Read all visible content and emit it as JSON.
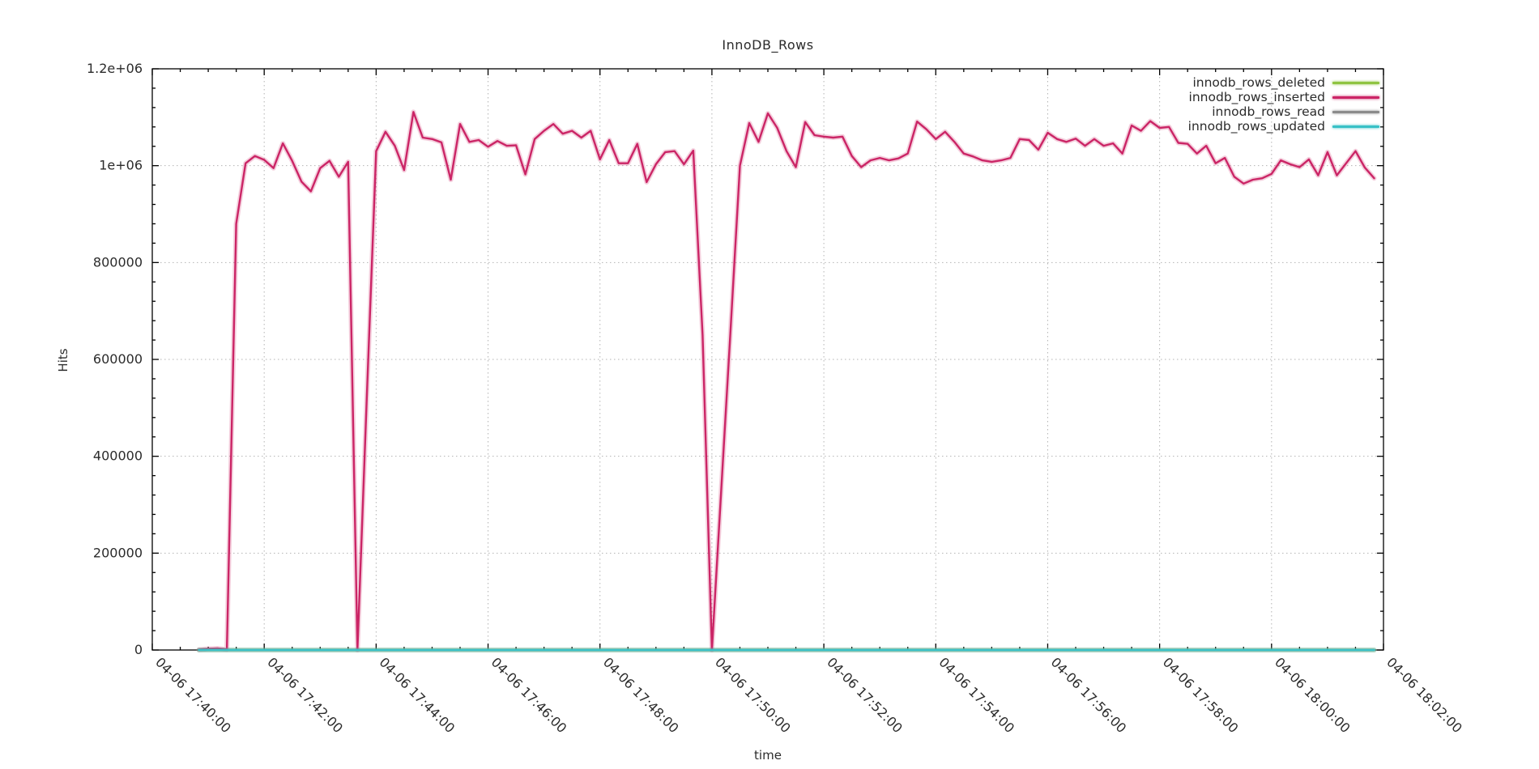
{
  "page": {
    "background_color": "#ffffff",
    "text_color": "#2b2b2b",
    "axis_color": "#000000",
    "grid_color": "#b3b3b3"
  },
  "chart_data": {
    "type": "line",
    "title": "InnoDB_Rows",
    "xlabel": "time",
    "ylabel": "Hits",
    "grid": "dotted",
    "legend_position": "top-right-inside",
    "x_axis": {
      "range_seconds": [
        0,
        1320
      ],
      "major_tick_seconds": 120,
      "minor_tick_seconds": 30,
      "label_rotation_degrees": 45,
      "tick_labels": [
        "04-06 17:40:00",
        "04-06 17:42:00",
        "04-06 17:44:00",
        "04-06 17:46:00",
        "04-06 17:48:00",
        "04-06 17:50:00",
        "04-06 17:52:00",
        "04-06 17:54:00",
        "04-06 17:56:00",
        "04-06 17:58:00",
        "04-06 18:00:00",
        "04-06 18:02:00"
      ]
    },
    "y_axis": {
      "range": [
        0,
        1200000
      ],
      "minor_tick_step": 40000,
      "ticks": [
        {
          "value": 0,
          "label": "0"
        },
        {
          "value": 200000,
          "label": "200000"
        },
        {
          "value": 400000,
          "label": "400000"
        },
        {
          "value": 600000,
          "label": "600000"
        },
        {
          "value": 800000,
          "label": "800000"
        },
        {
          "value": 1000000,
          "label": "1e+06"
        },
        {
          "value": 1200000,
          "label": "1.2e+06"
        }
      ]
    },
    "sampling": {
      "start_offset_seconds": 50,
      "step_seconds": 10,
      "point_count": 127,
      "first_sample_time": "04-06 17:40:50",
      "last_sample_time": "04-06 18:01:50"
    },
    "series": [
      {
        "name": "innodb_rows_deleted",
        "color": "#8fc441",
        "constant_value": 0
      },
      {
        "name": "innodb_rows_inserted",
        "color": "#cb2566",
        "values": [
          800,
          2500,
          3300,
          1200,
          880000,
          1005000,
          1020000,
          1012000,
          995000,
          1046000,
          1010000,
          967000,
          947000,
          995000,
          1010000,
          977000,
          1008000,
          0,
          520000,
          1030000,
          1070000,
          1041000,
          991000,
          1111000,
          1058000,
          1055000,
          1048000,
          971000,
          1086000,
          1049000,
          1053000,
          1039000,
          1051000,
          1041000,
          1042000,
          982000,
          1055000,
          1072000,
          1086000,
          1066000,
          1072000,
          1058000,
          1072000,
          1013000,
          1053000,
          1005000,
          1005000,
          1045000,
          966000,
          1003000,
          1028000,
          1030000,
          1003000,
          1031000,
          650000,
          0,
          330000,
          660000,
          1000000,
          1088000,
          1049000,
          1108000,
          1078000,
          1030000,
          997000,
          1090000,
          1063000,
          1060000,
          1058000,
          1060000,
          1020000,
          997000,
          1011000,
          1016000,
          1011000,
          1015000,
          1025000,
          1091000,
          1075000,
          1055000,
          1070000,
          1049000,
          1025000,
          1019000,
          1011000,
          1008000,
          1011000,
          1016000,
          1055000,
          1053000,
          1033000,
          1068000,
          1055000,
          1049000,
          1056000,
          1041000,
          1055000,
          1041000,
          1046000,
          1025000,
          1083000,
          1072000,
          1092000,
          1078000,
          1080000,
          1047000,
          1045000,
          1025000,
          1041000,
          1005000,
          1016000,
          977000,
          963000,
          971000,
          974000,
          983000,
          1011000,
          1003000,
          997000,
          1013000,
          980000,
          1028000,
          980000,
          1005000,
          1030000,
          996000,
          974000
        ]
      },
      {
        "name": "innodb_rows_read",
        "color": "#8b8b8b",
        "constant_value": 0
      },
      {
        "name": "innodb_rows_updated",
        "color": "#38c1c6",
        "constant_value": 0
      }
    ]
  }
}
